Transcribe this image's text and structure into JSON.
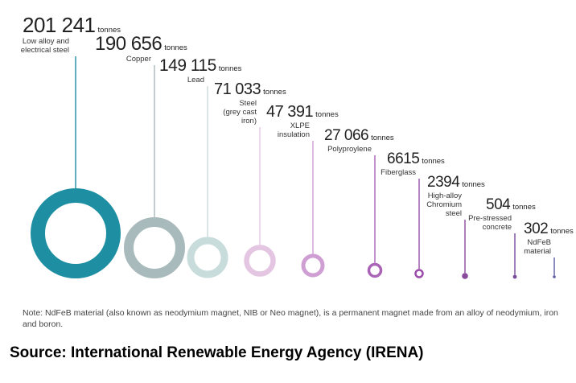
{
  "chart_data": {
    "type": "bubble",
    "unit": "tonnes",
    "items": [
      {
        "value": "201 241",
        "label": [
          "Low alloy and",
          "electrical steel"
        ],
        "amount": 201241,
        "color": "#1e8fa3"
      },
      {
        "value": "190 656",
        "label": [
          "Copper"
        ],
        "amount": 190656,
        "color": "#a8babb"
      },
      {
        "value": "149 115",
        "label": [
          "Lead"
        ],
        "amount": 149115,
        "color": "#c7dcdb"
      },
      {
        "value": "71 033",
        "label": [
          "Steel",
          "(grey cast",
          "iron)"
        ],
        "amount": 71033,
        "color": "#e4c6e3"
      },
      {
        "value": "47 391",
        "label": [
          "XLPE",
          "insulation"
        ],
        "amount": 47391,
        "color": "#cf9fd3"
      },
      {
        "value": "27 066",
        "label": [
          "Polyproylene"
        ],
        "amount": 27066,
        "color": "#a964b6"
      },
      {
        "value": "6615",
        "label": [
          "Fiberglass"
        ],
        "amount": 6615,
        "color": "#9a4da9"
      },
      {
        "value": "2394",
        "label": [
          "High-alloy",
          "Chromium",
          "steel"
        ],
        "amount": 2394,
        "color": "#8a4a9c"
      },
      {
        "value": "504",
        "label": [
          "Pre-stressed",
          "concrete"
        ],
        "amount": 504,
        "color": "#7a4a9b"
      },
      {
        "value": "302",
        "label": [
          "NdFeB",
          "material"
        ],
        "amount": 302,
        "color": "#5c5aa3"
      }
    ]
  },
  "note": "Note: NdFeB material (also known as neodymium magnet, NIB or Neo magnet), is a permanent magnet made from an alloy of neodymium, iron and boron.",
  "source": "Source: International Renewable Energy Agency (IRENA)"
}
